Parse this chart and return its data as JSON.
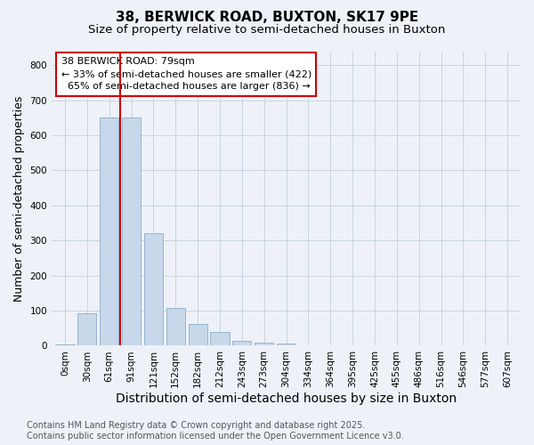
{
  "title1": "38, BERWICK ROAD, BUXTON, SK17 9PE",
  "title2": "Size of property relative to semi-detached houses in Buxton",
  "xlabel": "Distribution of semi-detached houses by size in Buxton",
  "ylabel": "Number of semi-detached properties",
  "bar_color": "#c8d8ea",
  "bar_edge_color": "#8aaec8",
  "highlight_color": "#cc0000",
  "categories": [
    "0sqm",
    "30sqm",
    "61sqm",
    "91sqm",
    "121sqm",
    "152sqm",
    "182sqm",
    "212sqm",
    "243sqm",
    "273sqm",
    "304sqm",
    "334sqm",
    "364sqm",
    "395sqm",
    "425sqm",
    "455sqm",
    "486sqm",
    "516sqm",
    "546sqm",
    "577sqm",
    "607sqm"
  ],
  "values": [
    3,
    92,
    650,
    650,
    320,
    108,
    62,
    38,
    15,
    8,
    5,
    2,
    1,
    0,
    0,
    0,
    0,
    0,
    0,
    0,
    0
  ],
  "ylim": [
    0,
    840
  ],
  "yticks": [
    0,
    100,
    200,
    300,
    400,
    500,
    600,
    700,
    800
  ],
  "property_label": "38 BERWICK ROAD: 79sqm",
  "pct_smaller": 33,
  "n_smaller": 422,
  "pct_larger": 65,
  "n_larger": 836,
  "property_bin_index": 2,
  "footer_line1": "Contains HM Land Registry data © Crown copyright and database right 2025.",
  "footer_line2": "Contains public sector information licensed under the Open Government Licence v3.0.",
  "background_color": "#eef2f8",
  "plot_bg_color": "#eef2f8",
  "grid_color": "#c8d4e0",
  "title1_fontsize": 11,
  "title2_fontsize": 9.5,
  "xlabel_fontsize": 10,
  "ylabel_fontsize": 9,
  "tick_fontsize": 7.5,
  "footer_fontsize": 7,
  "annotation_fontsize": 8
}
